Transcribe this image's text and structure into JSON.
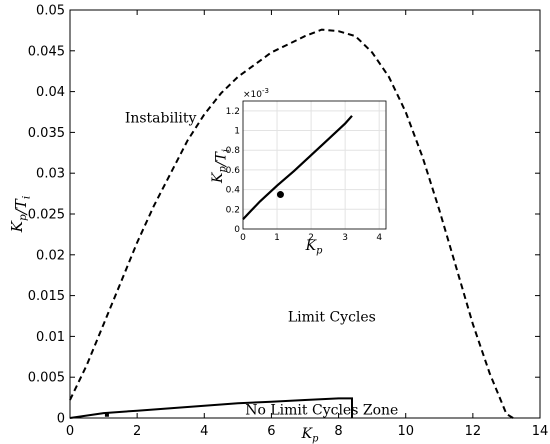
{
  "chart_data": [
    {
      "type": "line",
      "role": "main",
      "xlabel": "K_p",
      "ylabel": "K_p/T_i",
      "xlim": [
        0,
        14
      ],
      "ylim": [
        0,
        0.05
      ],
      "xticks": [
        "0",
        "2",
        "4",
        "6",
        "8",
        "10",
        "12",
        "14"
      ],
      "yticks": [
        "0",
        "0.005",
        "0.01",
        "0.015",
        "0.02",
        "0.025",
        "0.03",
        "0.035",
        "0.04",
        "0.045",
        "0.05"
      ],
      "grid": false,
      "series": [
        {
          "style": "dashed",
          "x": [
            0,
            0.5,
            1,
            1.5,
            2,
            2.5,
            3,
            3.5,
            4,
            4.5,
            5,
            5.5,
            6,
            6.5,
            7,
            7.5,
            8,
            8.5,
            9,
            9.5,
            10,
            10.5,
            11,
            11.5,
            12,
            12.5,
            13,
            13.2
          ],
          "y": [
            0.0022,
            0.0065,
            0.0115,
            0.0165,
            0.0215,
            0.026,
            0.03,
            0.034,
            0.0372,
            0.0398,
            0.0418,
            0.0433,
            0.0448,
            0.0458,
            0.0468,
            0.0476,
            0.0474,
            0.0468,
            0.0448,
            0.0418,
            0.0375,
            0.032,
            0.0255,
            0.0185,
            0.0115,
            0.0055,
            0.0005,
            0
          ]
        },
        {
          "style": "solid",
          "x": [
            0,
            1,
            2,
            3,
            4,
            5,
            6,
            7,
            8,
            8.4,
            8.4
          ],
          "y": [
            0,
            0.0006,
            0.0009,
            0.0012,
            0.0015,
            0.0018,
            0.002,
            0.0022,
            0.0024,
            0.0024,
            0
          ]
        }
      ],
      "points": [
        {
          "x": 1.1,
          "y": 0.0004
        }
      ],
      "annotations": [
        {
          "text": "Instability",
          "x": 2.7,
          "y": 0.0362
        },
        {
          "text": "Limit Cycles",
          "x": 7.8,
          "y": 0.0118
        },
        {
          "text": "No Limit Cycles Zone",
          "x": 7.5,
          "y": 0.0004
        }
      ]
    },
    {
      "type": "line",
      "role": "inset",
      "xlabel": "K_p",
      "ylabel": "K_p/T_i",
      "xlim": [
        0,
        4.2
      ],
      "ylim": [
        0,
        0.0013
      ],
      "y_exponent_label": "×10",
      "y_exponent_power": "-3",
      "xticks": [
        "0",
        "1",
        "2",
        "3",
        "4"
      ],
      "yticks": [
        "0",
        "0.2",
        "0.4",
        "0.6",
        "0.8",
        "1",
        "1.2"
      ],
      "ytick_values": [
        0,
        0.0002,
        0.0004,
        0.0006,
        0.0008,
        0.001,
        0.0012
      ],
      "grid": true,
      "series": [
        {
          "style": "solid",
          "x": [
            0,
            0.25,
            0.5,
            0.75,
            1,
            1.5,
            2,
            2.5,
            3,
            3.2
          ],
          "y": [
            0.0001,
            0.00019,
            0.00028,
            0.00036,
            0.00044,
            0.00059,
            0.00075,
            0.00091,
            0.00107,
            0.00115
          ]
        }
      ],
      "points": [
        {
          "x": 1.1,
          "y": 0.00035
        }
      ]
    }
  ]
}
